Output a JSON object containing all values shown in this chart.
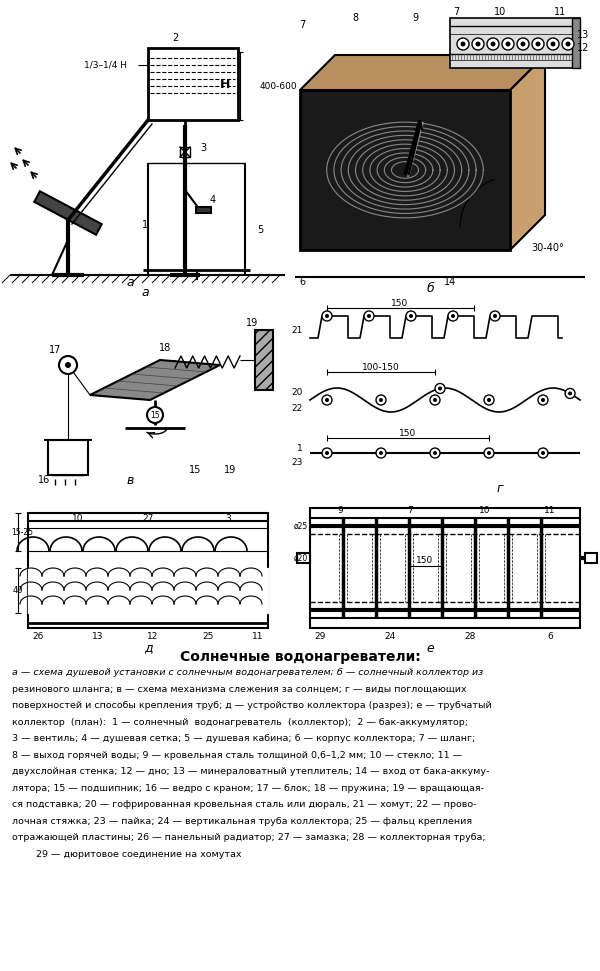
{
  "background_color": "#ffffff",
  "caption_title": "Солнечные водонагреватели:",
  "caption_lines": [
    "а — схема душевой установки с солнечным водонагревателем; б — солнечный коллектор из",
    "резинового шланга; в — схема механизма слежения за солнцем; г — виды поглощающих",
    "поверхностей и способы крепления труб; д — устройство коллектора (разрез); е — трубчатый",
    "коллектор  (план):  1 — солнечный  водонагреватель  (коллектор);  2 — бак-аккумулятор;",
    "3 — вентиль; 4 — душевая сетка; 5 — душевая кабина; 6 — корпус коллектора; 7 — шланг;",
    "8 — выход горячей воды; 9 — кровельная сталь толщиной 0,6–1,2 мм; 10 — стекло; 11 —",
    "двухслойная стенка; 12 — дно; 13 — минераловатный утеплитель; 14 — вход от бака-аккуму-",
    "лятора; 15 — подшипник; 16 — ведро с краном; 17 — блок; 18 — пружина; 19 — вращающая-",
    "ся подставка; 20 — гофрированная кровельная сталь или дюраль, 21 — хомут; 22 — прово-",
    "лочная стяжка; 23 — пайка; 24 — вертикальная труба коллектора; 25 — фальц крепления",
    "отражающей пластины; 26 — панельный радиатор; 27 — замазка; 28 — коллекторная труба;",
    "        29 — дюритовое соединение на хомутах"
  ]
}
